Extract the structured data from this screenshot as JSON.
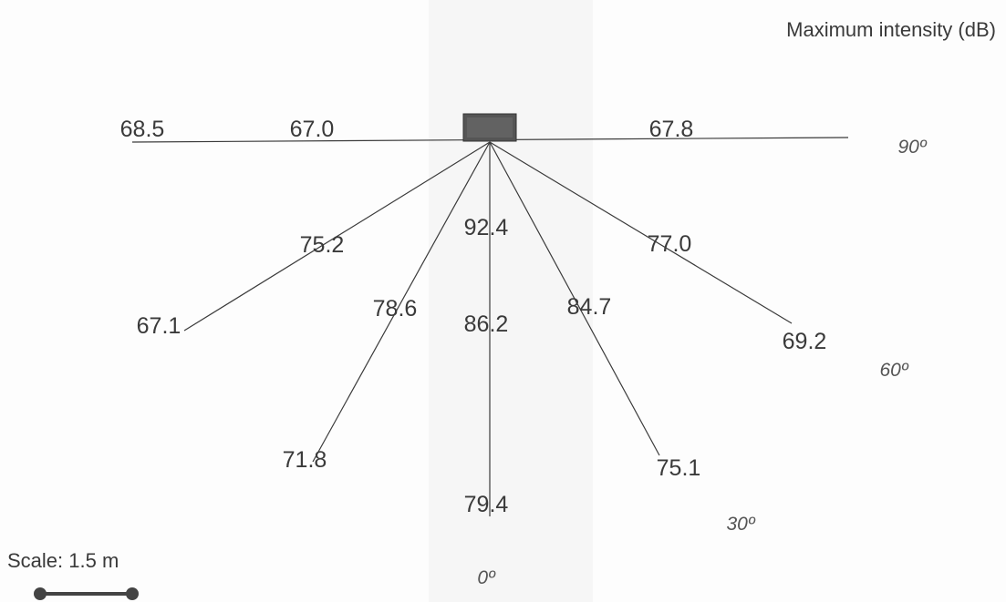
{
  "title": "Maximum intensity (dB)",
  "scale": {
    "label": "Scale: 1.5 m",
    "color": "#444444"
  },
  "source": {
    "icon": "source-block",
    "color": "#555555"
  },
  "angles": [
    "90º",
    "60º",
    "30º",
    "0º"
  ],
  "rays": [
    {
      "name": "ray-left-90",
      "readings": [
        "67.0",
        "68.5"
      ]
    },
    {
      "name": "ray-left-60",
      "readings": [
        "75.2",
        "67.1"
      ]
    },
    {
      "name": "ray-left-30",
      "readings": [
        "78.6",
        "71.8"
      ]
    },
    {
      "name": "ray-0",
      "readings": [
        "92.4",
        "86.2",
        "79.4"
      ]
    },
    {
      "name": "ray-right-30",
      "readings": [
        "84.7",
        "75.1"
      ]
    },
    {
      "name": "ray-right-60",
      "readings": [
        "77.0",
        "69.2"
      ]
    },
    {
      "name": "ray-right-90",
      "readings": [
        "67.8"
      ]
    }
  ]
}
